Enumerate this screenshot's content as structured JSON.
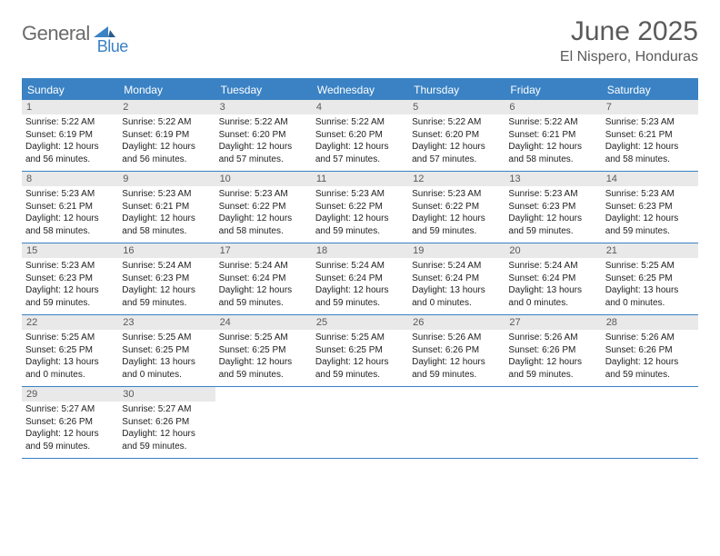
{
  "logo": {
    "text1": "General",
    "text2": "Blue"
  },
  "title": "June 2025",
  "location": "El Nispero, Honduras",
  "colors": {
    "accent": "#3a82c4",
    "header_bg": "#e9e9e9",
    "text": "#5a5a5a",
    "body_text": "#222222",
    "background": "#ffffff"
  },
  "typography": {
    "title_fontsize": 30,
    "location_fontsize": 16,
    "dow_fontsize": 12,
    "daynum_fontsize": 11,
    "body_fontsize": 10
  },
  "days_of_week": [
    "Sunday",
    "Monday",
    "Tuesday",
    "Wednesday",
    "Thursday",
    "Friday",
    "Saturday"
  ],
  "weeks": [
    [
      {
        "n": "1",
        "sr": "5:22 AM",
        "ss": "6:19 PM",
        "dl": "12 hours and 56 minutes."
      },
      {
        "n": "2",
        "sr": "5:22 AM",
        "ss": "6:19 PM",
        "dl": "12 hours and 56 minutes."
      },
      {
        "n": "3",
        "sr": "5:22 AM",
        "ss": "6:20 PM",
        "dl": "12 hours and 57 minutes."
      },
      {
        "n": "4",
        "sr": "5:22 AM",
        "ss": "6:20 PM",
        "dl": "12 hours and 57 minutes."
      },
      {
        "n": "5",
        "sr": "5:22 AM",
        "ss": "6:20 PM",
        "dl": "12 hours and 57 minutes."
      },
      {
        "n": "6",
        "sr": "5:22 AM",
        "ss": "6:21 PM",
        "dl": "12 hours and 58 minutes."
      },
      {
        "n": "7",
        "sr": "5:23 AM",
        "ss": "6:21 PM",
        "dl": "12 hours and 58 minutes."
      }
    ],
    [
      {
        "n": "8",
        "sr": "5:23 AM",
        "ss": "6:21 PM",
        "dl": "12 hours and 58 minutes."
      },
      {
        "n": "9",
        "sr": "5:23 AM",
        "ss": "6:21 PM",
        "dl": "12 hours and 58 minutes."
      },
      {
        "n": "10",
        "sr": "5:23 AM",
        "ss": "6:22 PM",
        "dl": "12 hours and 58 minutes."
      },
      {
        "n": "11",
        "sr": "5:23 AM",
        "ss": "6:22 PM",
        "dl": "12 hours and 59 minutes."
      },
      {
        "n": "12",
        "sr": "5:23 AM",
        "ss": "6:22 PM",
        "dl": "12 hours and 59 minutes."
      },
      {
        "n": "13",
        "sr": "5:23 AM",
        "ss": "6:23 PM",
        "dl": "12 hours and 59 minutes."
      },
      {
        "n": "14",
        "sr": "5:23 AM",
        "ss": "6:23 PM",
        "dl": "12 hours and 59 minutes."
      }
    ],
    [
      {
        "n": "15",
        "sr": "5:23 AM",
        "ss": "6:23 PM",
        "dl": "12 hours and 59 minutes."
      },
      {
        "n": "16",
        "sr": "5:24 AM",
        "ss": "6:23 PM",
        "dl": "12 hours and 59 minutes."
      },
      {
        "n": "17",
        "sr": "5:24 AM",
        "ss": "6:24 PM",
        "dl": "12 hours and 59 minutes."
      },
      {
        "n": "18",
        "sr": "5:24 AM",
        "ss": "6:24 PM",
        "dl": "12 hours and 59 minutes."
      },
      {
        "n": "19",
        "sr": "5:24 AM",
        "ss": "6:24 PM",
        "dl": "13 hours and 0 minutes."
      },
      {
        "n": "20",
        "sr": "5:24 AM",
        "ss": "6:24 PM",
        "dl": "13 hours and 0 minutes."
      },
      {
        "n": "21",
        "sr": "5:25 AM",
        "ss": "6:25 PM",
        "dl": "13 hours and 0 minutes."
      }
    ],
    [
      {
        "n": "22",
        "sr": "5:25 AM",
        "ss": "6:25 PM",
        "dl": "13 hours and 0 minutes."
      },
      {
        "n": "23",
        "sr": "5:25 AM",
        "ss": "6:25 PM",
        "dl": "13 hours and 0 minutes."
      },
      {
        "n": "24",
        "sr": "5:25 AM",
        "ss": "6:25 PM",
        "dl": "12 hours and 59 minutes."
      },
      {
        "n": "25",
        "sr": "5:25 AM",
        "ss": "6:25 PM",
        "dl": "12 hours and 59 minutes."
      },
      {
        "n": "26",
        "sr": "5:26 AM",
        "ss": "6:26 PM",
        "dl": "12 hours and 59 minutes."
      },
      {
        "n": "27",
        "sr": "5:26 AM",
        "ss": "6:26 PM",
        "dl": "12 hours and 59 minutes."
      },
      {
        "n": "28",
        "sr": "5:26 AM",
        "ss": "6:26 PM",
        "dl": "12 hours and 59 minutes."
      }
    ],
    [
      {
        "n": "29",
        "sr": "5:27 AM",
        "ss": "6:26 PM",
        "dl": "12 hours and 59 minutes."
      },
      {
        "n": "30",
        "sr": "5:27 AM",
        "ss": "6:26 PM",
        "dl": "12 hours and 59 minutes."
      },
      null,
      null,
      null,
      null,
      null
    ]
  ],
  "labels": {
    "sunrise": "Sunrise:",
    "sunset": "Sunset:",
    "daylight": "Daylight:"
  }
}
